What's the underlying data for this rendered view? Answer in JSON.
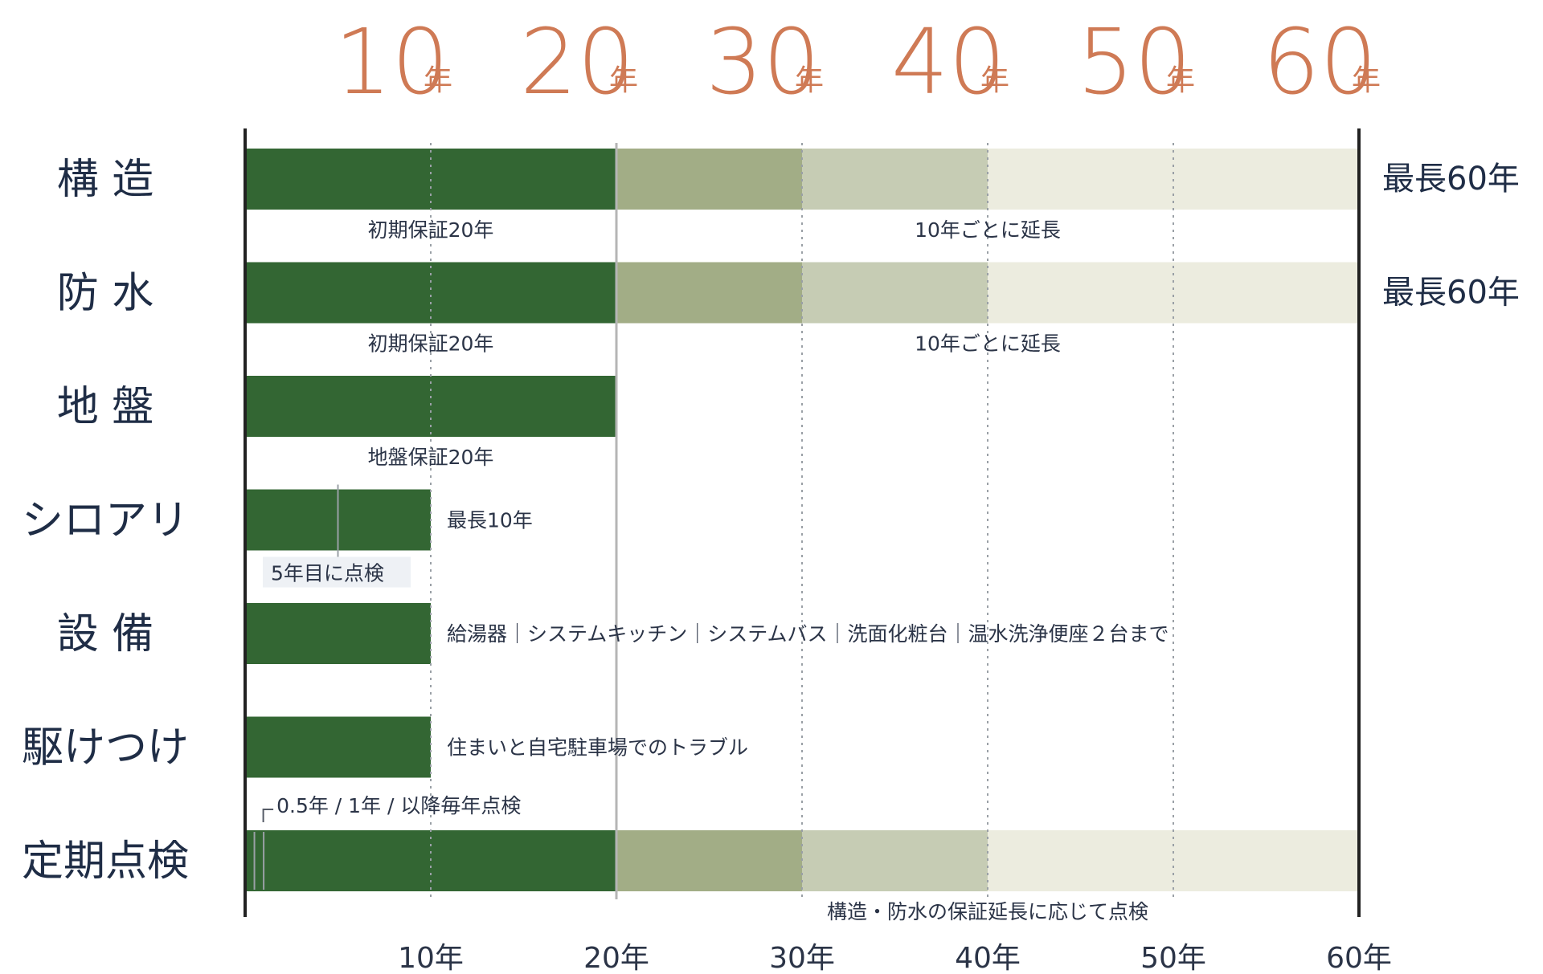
{
  "chart_data": {
    "type": "bar",
    "x_unit": "年",
    "xlim": [
      0,
      60
    ],
    "x_ticks": [
      10,
      20,
      30,
      40,
      50,
      60
    ],
    "top_labels": [
      {
        "num": "10",
        "unit": "年"
      },
      {
        "num": "20",
        "unit": "年"
      },
      {
        "num": "30",
        "unit": "年"
      },
      {
        "num": "40",
        "unit": "年"
      },
      {
        "num": "50",
        "unit": "年"
      },
      {
        "num": "60",
        "unit": "年"
      }
    ],
    "bottom_labels": [
      "10年",
      "20年",
      "30年",
      "40年",
      "50年",
      "60年"
    ],
    "colors": {
      "initial": "#336633",
      "ext1": "#a2ad86",
      "ext2": "#c6ccb4",
      "ext3": "#ececdf",
      "axis": "#222222",
      "grid": "#9aa0a6",
      "line20": "#b5b5b5",
      "top_year": "#cf7a55",
      "label": "#1f2d46"
    },
    "rows": [
      {
        "label": "構 造",
        "segments": [
          {
            "start": 0,
            "end": 20,
            "tone": "initial"
          },
          {
            "start": 20,
            "end": 30,
            "tone": "ext1"
          },
          {
            "start": 30,
            "end": 40,
            "tone": "ext2"
          },
          {
            "start": 40,
            "end": 60,
            "tone": "ext3"
          }
        ],
        "notes": [
          "初期保証20年",
          "10年ごとに延長"
        ],
        "side": "最長60年"
      },
      {
        "label": "防 水",
        "segments": [
          {
            "start": 0,
            "end": 20,
            "tone": "initial"
          },
          {
            "start": 20,
            "end": 30,
            "tone": "ext1"
          },
          {
            "start": 30,
            "end": 40,
            "tone": "ext2"
          },
          {
            "start": 40,
            "end": 60,
            "tone": "ext3"
          }
        ],
        "notes": [
          "初期保証20年",
          "10年ごとに延長"
        ],
        "side": "最長60年"
      },
      {
        "label": "地 盤",
        "segments": [
          {
            "start": 0,
            "end": 20,
            "tone": "initial"
          }
        ],
        "notes": [
          "地盤保証20年"
        ]
      },
      {
        "label": "シロアリ",
        "segments": [
          {
            "start": 0,
            "end": 10,
            "tone": "initial"
          }
        ],
        "notes": [
          "最長10年",
          "5年目に点検"
        ],
        "inspection_at": 5
      },
      {
        "label": "設 備",
        "segments": [
          {
            "start": 0,
            "end": 10,
            "tone": "initial"
          }
        ],
        "notes": [
          "給湯器｜システムキッチン｜システムバス｜洗面化粧台｜温水洗浄便座２台まで"
        ]
      },
      {
        "label": "駆けつけ",
        "segments": [
          {
            "start": 0,
            "end": 10,
            "tone": "initial"
          }
        ],
        "notes": [
          "住まいと自宅駐車場でのトラブル"
        ]
      },
      {
        "label": "定期点検",
        "segments": [
          {
            "start": 0,
            "end": 20,
            "tone": "initial"
          },
          {
            "start": 20,
            "end": 30,
            "tone": "ext1"
          },
          {
            "start": 30,
            "end": 40,
            "tone": "ext2"
          },
          {
            "start": 40,
            "end": 60,
            "tone": "ext3"
          }
        ],
        "notes": [
          "0.5年 / 1年 / 以降毎年点検",
          "構造・防水の保証延長に応じて点検"
        ],
        "inspections_at": [
          0.5,
          1
        ]
      }
    ]
  }
}
